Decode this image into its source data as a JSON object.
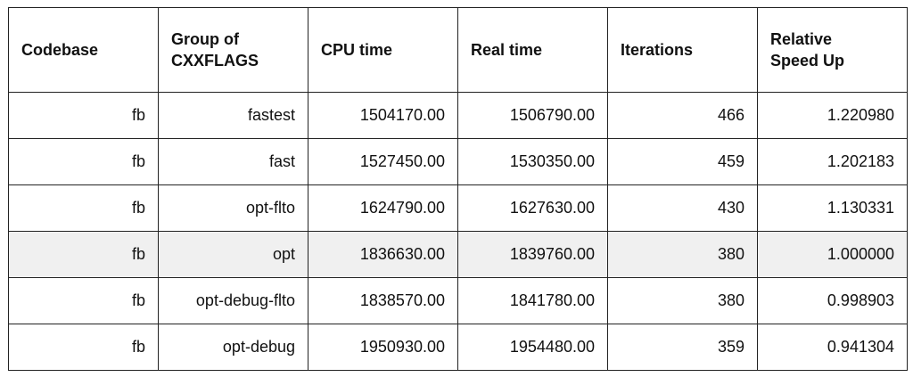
{
  "table": {
    "headers": [
      "Codebase",
      "Group of CXXFLAGS",
      "CPU time",
      "Real time",
      "Iterations",
      "Relative Speed Up"
    ],
    "rows": [
      [
        "fb",
        "fastest",
        "1504170.00",
        "1506790.00",
        "466",
        "1.220980"
      ],
      [
        "fb",
        "fast",
        "1527450.00",
        "1530350.00",
        "459",
        "1.202183"
      ],
      [
        "fb",
        "opt-flto",
        "1624790.00",
        "1627630.00",
        "430",
        "1.130331"
      ],
      [
        "fb",
        "opt",
        "1836630.00",
        "1839760.00",
        "380",
        "1.000000"
      ],
      [
        "fb",
        "opt-debug-flto",
        "1838570.00",
        "1841780.00",
        "380",
        "0.998903"
      ],
      [
        "fb",
        "opt-debug",
        "1950930.00",
        "1954480.00",
        "359",
        "0.941304"
      ]
    ],
    "highlight_row_color": "#f0f0f0"
  }
}
